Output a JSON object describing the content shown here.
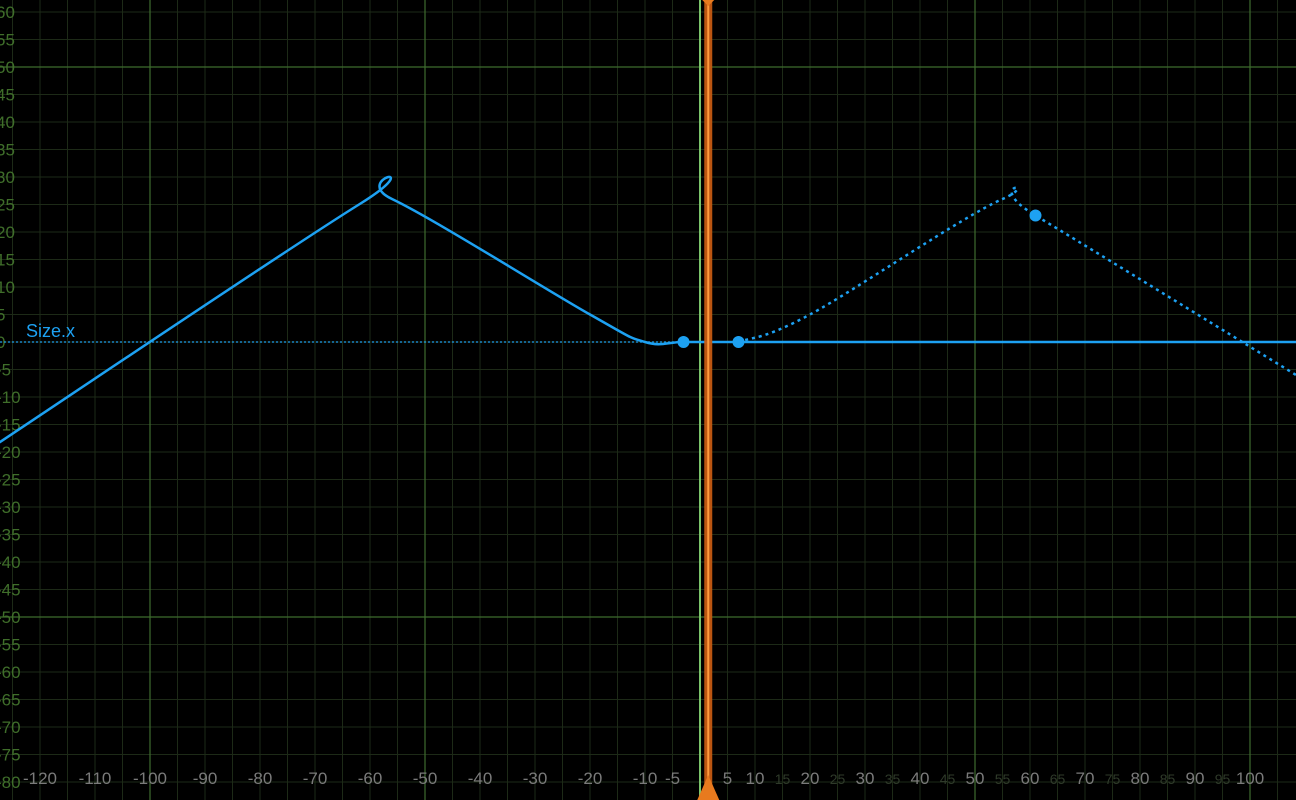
{
  "chart_data": {
    "type": "line",
    "series": [
      {
        "name": "Size.x",
        "color": "#1da1f2",
        "curve_points": [
          [
            -130,
            -20
          ],
          [
            -62,
            25
          ],
          [
            -56,
            26
          ],
          [
            -20,
            5
          ],
          [
            -10,
            0
          ],
          [
            -3,
            0
          ],
          [
            7,
            0
          ]
        ],
        "cycle_offset_points": [
          [
            7,
            0
          ],
          [
            20,
            5
          ],
          [
            55,
            26
          ],
          [
            61,
            23
          ],
          [
            110,
            -7
          ]
        ],
        "constant_value": 0,
        "keyframes": [
          {
            "x": -3,
            "y": 0
          },
          {
            "x": 7,
            "y": 0
          },
          {
            "x": 61,
            "y": 23
          }
        ]
      }
    ],
    "xlim": [
      -128,
      106
    ],
    "ylim": [
      -82,
      62
    ],
    "x_major_gridlines": [
      -100,
      -50,
      0,
      50,
      100
    ],
    "y_major_gridlines": [
      -50,
      50
    ],
    "playhead": {
      "x": 1.5,
      "color": "#e87a1e"
    },
    "cursor_line": {
      "x": 0,
      "color": "#7ac36a"
    },
    "x_tick_labels": [
      "-120",
      "-110",
      "-100",
      "-90",
      "-80",
      "-70",
      "-60",
      "-50",
      "-40",
      "-30",
      "-20",
      "-10",
      "-5",
      "5",
      "10",
      "15",
      "20",
      "25",
      "30",
      "35",
      "40",
      "45",
      "50",
      "55",
      "60",
      "65",
      "70",
      "75",
      "80",
      "85",
      "90",
      "95",
      "100"
    ],
    "y_tick_labels": [
      "60",
      "55",
      "50",
      "45",
      "40",
      "35",
      "30",
      "25",
      "20",
      "15",
      "10",
      "5",
      "0",
      "-5",
      "-10",
      "-15",
      "-20",
      "-25",
      "-30",
      "-35",
      "-40",
      "-45",
      "-50",
      "-55",
      "-60",
      "-65",
      "-70",
      "-75",
      "-80"
    ],
    "grid": true,
    "background": "#000000"
  }
}
